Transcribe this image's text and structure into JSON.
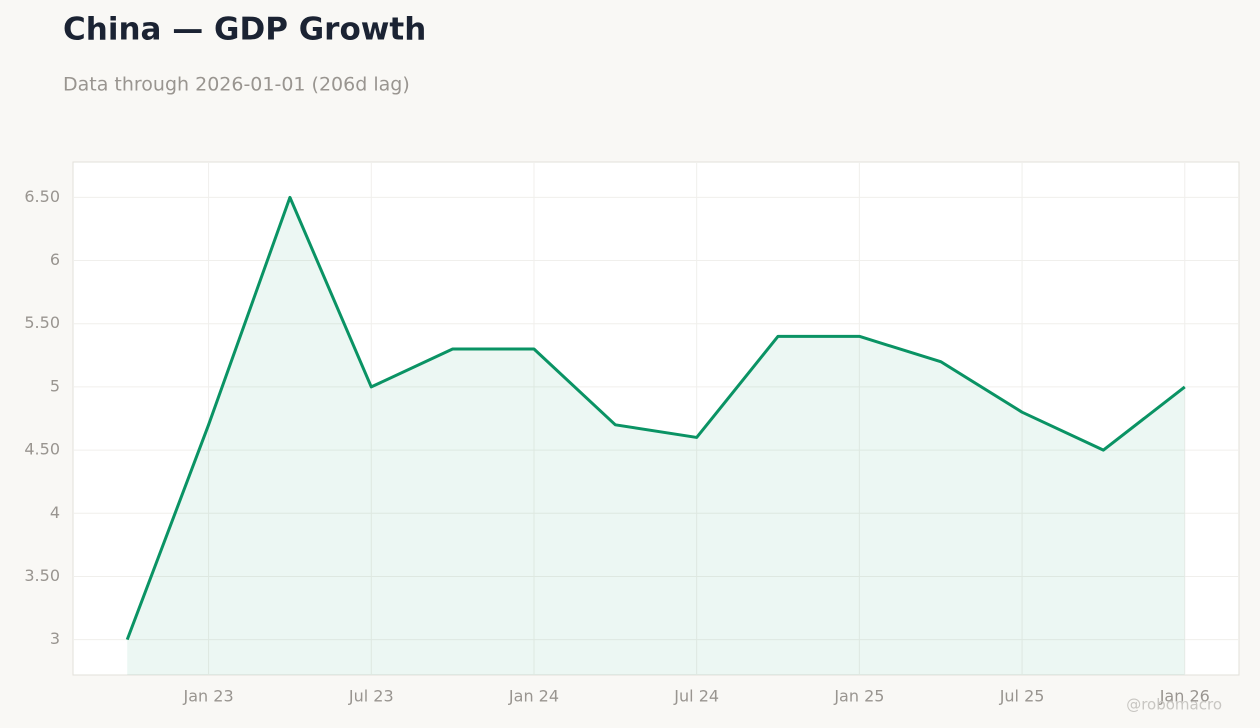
{
  "chart_data": {
    "type": "line",
    "title": "China — GDP Growth",
    "subtitle": "Data through 2026-01-01 (206d lag)",
    "watermark": "@robomacro",
    "x": [
      "2022-10",
      "2023-01",
      "2023-04",
      "2023-07",
      "2023-10",
      "2024-01",
      "2024-04",
      "2024-07",
      "2024-10",
      "2025-01",
      "2025-04",
      "2025-07",
      "2025-10",
      "2026-01"
    ],
    "values": [
      3.0,
      4.7,
      6.5,
      5.0,
      5.3,
      5.3,
      4.7,
      4.6,
      5.4,
      5.4,
      5.2,
      4.8,
      4.5,
      5.0
    ],
    "color": "#0a9364",
    "xlim": [
      "2022-08",
      "2026-03"
    ],
    "xticks": [
      {
        "value": "2023-01",
        "label": "Jan 23"
      },
      {
        "value": "2023-07",
        "label": "Jul 23"
      },
      {
        "value": "2024-01",
        "label": "Jan 24"
      },
      {
        "value": "2024-07",
        "label": "Jul 24"
      },
      {
        "value": "2025-01",
        "label": "Jan 25"
      },
      {
        "value": "2025-07",
        "label": "Jul 25"
      },
      {
        "value": "2026-01",
        "label": "Jan 26"
      }
    ],
    "ylim": [
      2.72,
      6.78
    ],
    "yticks": [
      3,
      {
        "value": 3.5,
        "label": "3.50"
      },
      4,
      {
        "value": 4.5,
        "label": "4.50"
      },
      5,
      {
        "value": 5.5,
        "label": "5.50"
      },
      6,
      {
        "value": 6.5,
        "label": "6.50"
      }
    ],
    "grid": true
  }
}
